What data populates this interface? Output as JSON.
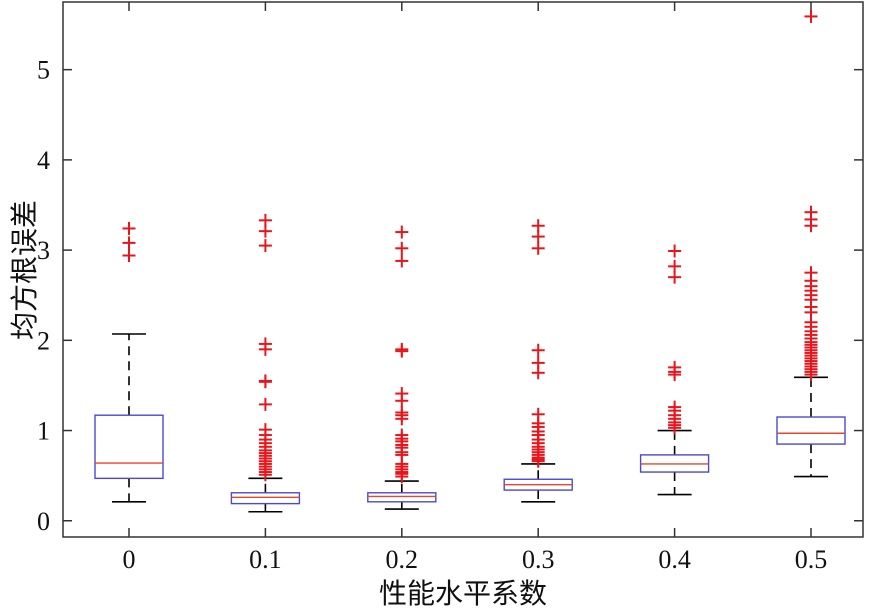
{
  "chart_data": {
    "type": "boxplot",
    "title": "",
    "xlabel": "性能水平系数",
    "ylabel": "均方根误差",
    "ylim": [
      -0.18,
      5.75
    ],
    "yticks": [
      "0",
      "1",
      "2",
      "3",
      "4",
      "5"
    ],
    "grid": false,
    "categories": [
      "0",
      "0.1",
      "0.2",
      "0.3",
      "0.4",
      "0.5"
    ],
    "boxes": [
      {
        "category": "0",
        "whisker_low": 0.21,
        "q1": 0.47,
        "median": 0.64,
        "q3": 1.17,
        "whisker_high": 2.07,
        "outliers": [
          3.24,
          3.08,
          2.94
        ]
      },
      {
        "category": "0.1",
        "whisker_low": 0.1,
        "q1": 0.19,
        "median": 0.26,
        "q3": 0.31,
        "whisker_high": 0.47,
        "outliers": [
          3.33,
          3.21,
          3.05,
          1.96,
          1.9,
          1.55,
          1.54,
          1.29,
          1.01,
          0.95,
          0.9,
          0.86,
          0.82,
          0.78,
          0.75,
          0.72,
          0.69,
          0.66,
          0.63,
          0.6,
          0.57,
          0.54,
          0.51
        ]
      },
      {
        "category": "0.2",
        "whisker_low": 0.13,
        "q1": 0.21,
        "median": 0.27,
        "q3": 0.31,
        "whisker_high": 0.44,
        "outliers": [
          3.2,
          3.02,
          2.88,
          1.9,
          1.88,
          1.41,
          1.33,
          1.2,
          1.17,
          1.13,
          0.95,
          0.91,
          0.88,
          0.84,
          0.81,
          0.76,
          0.73,
          0.63,
          0.6,
          0.57,
          0.54,
          0.52,
          0.49
        ]
      },
      {
        "category": "0.3",
        "whisker_low": 0.21,
        "q1": 0.34,
        "median": 0.4,
        "q3": 0.46,
        "whisker_high": 0.63,
        "outliers": [
          3.27,
          3.15,
          3.02,
          1.89,
          1.75,
          1.64,
          1.18,
          1.08,
          1.04,
          0.99,
          0.95,
          0.9,
          0.86,
          0.82,
          0.79,
          0.76,
          0.73,
          0.7,
          0.68,
          0.66
        ]
      },
      {
        "category": "0.4",
        "whisker_low": 0.29,
        "q1": 0.54,
        "median": 0.63,
        "q3": 0.73,
        "whisker_high": 1.0,
        "outliers": [
          2.99,
          2.82,
          2.7,
          1.7,
          1.65,
          1.62,
          1.26,
          1.22,
          1.17,
          1.13,
          1.09,
          1.06,
          1.03
        ]
      },
      {
        "category": "0.5",
        "whisker_low": 0.49,
        "q1": 0.85,
        "median": 0.97,
        "q3": 1.15,
        "whisker_high": 1.59,
        "outliers": [
          5.59,
          3.42,
          3.34,
          3.27,
          2.75,
          2.66,
          2.6,
          2.55,
          2.5,
          2.45,
          2.37,
          2.31,
          2.2,
          2.15,
          2.1,
          2.06,
          2.02,
          1.98,
          1.95,
          1.92,
          1.89,
          1.86,
          1.83,
          1.8,
          1.77,
          1.74,
          1.71,
          1.68,
          1.65,
          1.62
        ]
      }
    ],
    "colors": {
      "box": "#4a4ad0",
      "median": "#e8452c",
      "whisker": "#000000",
      "outlier": "#e8151b",
      "axis": "#333333"
    }
  }
}
